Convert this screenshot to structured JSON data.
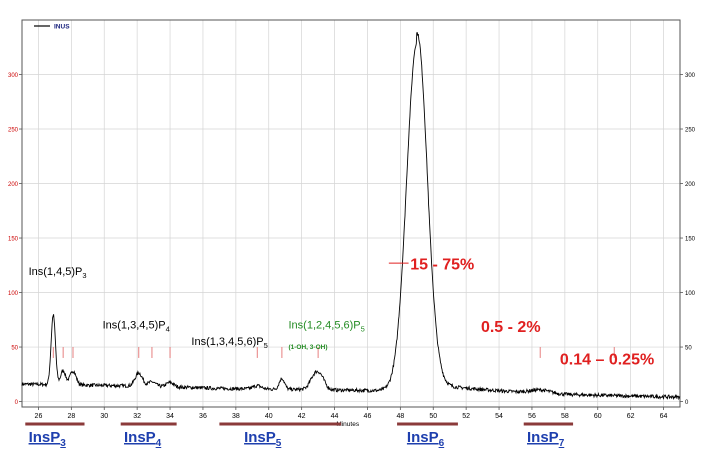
{
  "chart_data": {
    "type": "line",
    "xlabel": "Minutes",
    "ylabel": "",
    "xlim": [
      25,
      65
    ],
    "ylim": [
      -5,
      350
    ],
    "x_ticks": [
      26,
      28,
      30,
      32,
      34,
      36,
      38,
      40,
      42,
      44,
      46,
      48,
      50,
      52,
      54,
      56,
      58,
      60,
      62,
      64
    ],
    "y_ticks": [
      0,
      50,
      100,
      150,
      200,
      250,
      300
    ],
    "grid": true,
    "legend": {
      "position": "top-left",
      "entries": [
        {
          "name": "INUS",
          "color": "#000000"
        }
      ]
    },
    "series": [
      {
        "name": "INUS",
        "color": "#000000",
        "baseline": 14,
        "peaks": [
          {
            "x": 26.9,
            "height": 64,
            "width": 0.13
          },
          {
            "x": 27.5,
            "height": 13,
            "width": 0.15
          },
          {
            "x": 28.1,
            "height": 13,
            "width": 0.18
          },
          {
            "x": 32.1,
            "height": 12,
            "width": 0.22
          },
          {
            "x": 32.9,
            "height": 4,
            "width": 0.22
          },
          {
            "x": 34.0,
            "height": 4,
            "width": 0.22
          },
          {
            "x": 39.3,
            "height": 3,
            "width": 0.25
          },
          {
            "x": 40.8,
            "height": 10,
            "width": 0.16
          },
          {
            "x": 42.8,
            "height": 13,
            "width": 0.28
          },
          {
            "x": 43.2,
            "height": 9,
            "width": 0.25
          },
          {
            "x": 49.0,
            "height": 318,
            "width": 0.62
          },
          {
            "x": 49.4,
            "height": 8,
            "width": 0.25
          },
          {
            "x": 56.5,
            "height": 3,
            "width": 0.6
          }
        ],
        "tail": {
          "start": 49.0,
          "amplitude": 8,
          "decay": 3.5
        },
        "drift": [
          [
            25,
            2
          ],
          [
            33,
            0
          ],
          [
            37,
            -2
          ],
          [
            52,
            -5
          ],
          [
            58,
            -8
          ],
          [
            65,
            -10
          ]
        ]
      }
    ],
    "peak_labels": [
      {
        "text": "Ins(1,4,5)P",
        "sub": "3",
        "color": "#000000",
        "x": 25.4,
        "y": 116
      },
      {
        "text": "Ins(1,3,4,5)P",
        "sub": "4",
        "color": "#000000",
        "x": 29.9,
        "y": 67
      },
      {
        "text": "Ins(1,3,4,5,6)P",
        "sub": "5",
        "color": "#000000",
        "x": 35.3,
        "y": 52
      },
      {
        "text": "Ins(1,2,4,5,6)P",
        "sub": "5",
        "color": "#228b22",
        "x": 41.2,
        "y": 67
      },
      {
        "text": "(1-OH, 3-OH)",
        "sub": "",
        "color": "#228b22",
        "x": 41.2,
        "y": 48,
        "small": true
      }
    ],
    "percent_labels": [
      {
        "text": "15 - 75%",
        "x": 48.6,
        "y": 121
      },
      {
        "text": "0.5 - 2%",
        "x": 52.9,
        "y": 64
      },
      {
        "text": "0.14 – 0.25%",
        "x": 57.7,
        "y": 34
      }
    ],
    "peak_markers": [
      26.9,
      27.5,
      28.1,
      32.1,
      32.9,
      34.0,
      39.3,
      40.8,
      43.0,
      56.5,
      61.0
    ],
    "group_labels": [
      {
        "base": "InsP",
        "sub": "3",
        "x": 25.4,
        "bar": [
          25.2,
          28.8
        ]
      },
      {
        "base": "InsP",
        "sub": "4",
        "x": 31.2,
        "bar": [
          31.0,
          34.4
        ]
      },
      {
        "base": "InsP",
        "sub": "5",
        "x": 38.5,
        "bar": [
          37.0,
          44.4
        ]
      },
      {
        "base": "InsP",
        "sub": "6",
        "x": 48.4,
        "bar": [
          47.8,
          51.5
        ]
      },
      {
        "base": "InsP",
        "sub": "7",
        "x": 55.7,
        "bar": [
          55.5,
          58.5
        ]
      }
    ]
  }
}
